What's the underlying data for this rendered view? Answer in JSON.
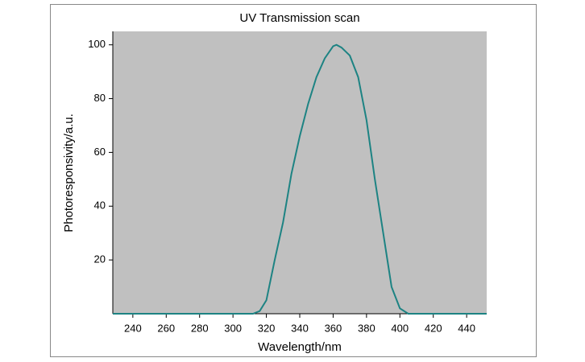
{
  "chart_data": {
    "type": "line",
    "title": "UV Transmission scan",
    "x_label": "Wavelength/nm",
    "y_label": "Photoresponsivity/a.u.",
    "x": [
      228,
      312,
      316,
      320,
      325,
      330,
      335,
      340,
      345,
      350,
      355,
      360,
      362,
      365,
      370,
      375,
      380,
      385,
      390,
      395,
      400,
      405,
      452
    ],
    "series": [
      {
        "name": "Photoresponsivity",
        "color": "#1d8383",
        "values": [
          0,
          0,
          1,
          5,
          20,
          34,
          52,
          66,
          78,
          88,
          95,
          99.5,
          100,
          99,
          96,
          88,
          72,
          50,
          30,
          10,
          2,
          0,
          0
        ]
      }
    ],
    "xlim": [
      228,
      452
    ],
    "xticks": [
      240,
      260,
      280,
      300,
      320,
      340,
      360,
      380,
      400,
      420,
      440
    ],
    "ylim": [
      0,
      105
    ],
    "yticks": [
      20,
      40,
      60,
      80,
      100
    ],
    "background": "#c0c0c0"
  }
}
